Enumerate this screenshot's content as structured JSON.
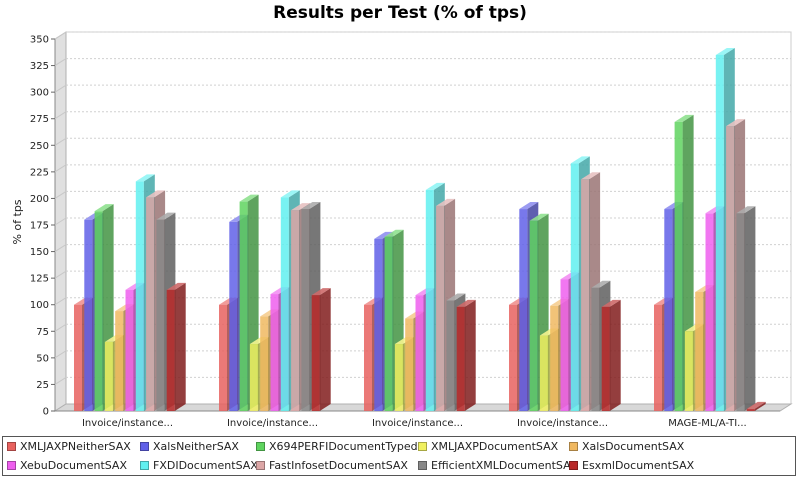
{
  "chart_data": {
    "type": "bar",
    "title": "Results per Test (% of tps)",
    "xlabel": "",
    "ylabel": "% of tps",
    "ylim": [
      0,
      350
    ],
    "yticks": [
      0,
      25,
      50,
      75,
      100,
      125,
      150,
      175,
      200,
      225,
      250,
      275,
      300,
      325,
      350
    ],
    "grid": true,
    "legend_position": "bottom",
    "categories": [
      "Invoice/instance...",
      "Invoice/instance...",
      "Invoice/instance...",
      "Invoice/instance...",
      "MAGE-ML/A-TI..."
    ],
    "series": [
      {
        "name": "XMLJAXPNeitherSAX",
        "color": "#e8625f",
        "values": [
          100,
          100,
          100,
          100,
          100
        ]
      },
      {
        "name": "XalsNeitherSAX",
        "color": "#6060e8",
        "values": [
          180,
          178,
          162,
          190,
          190
        ]
      },
      {
        "name": "X694PERFIDocumentTyped",
        "color": "#5fd45f",
        "values": [
          188,
          197,
          164,
          179,
          272
        ]
      },
      {
        "name": "XMLJAXPDocumentSAX",
        "color": "#f0f060",
        "values": [
          65,
          63,
          63,
          71,
          75
        ]
      },
      {
        "name": "XalsDocumentSAX",
        "color": "#f0b860",
        "values": [
          94,
          89,
          87,
          99,
          112
        ]
      },
      {
        "name": "XebuDocumentSAX",
        "color": "#ee5fee",
        "values": [
          114,
          110,
          109,
          124,
          186
        ]
      },
      {
        "name": "FXDIDocumentSAX",
        "color": "#60f0f0",
        "values": [
          216,
          201,
          208,
          233,
          335
        ]
      },
      {
        "name": "FastInfosetDocumentSAX",
        "color": "#dca6a6",
        "values": [
          201,
          189,
          193,
          218,
          268
        ]
      },
      {
        "name": "EfficientXMLDocumentSAX",
        "color": "#888888",
        "values": [
          180,
          190,
          104,
          116,
          186
        ]
      },
      {
        "name": "EsxmlDocumentSAX",
        "color": "#b82828",
        "values": [
          114,
          109,
          98,
          98,
          2
        ]
      }
    ]
  }
}
